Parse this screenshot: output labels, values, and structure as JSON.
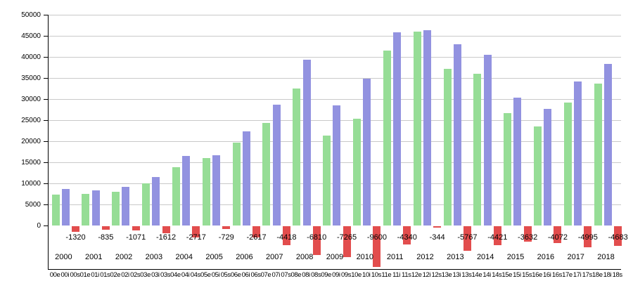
{
  "chart_data": {
    "type": "bar",
    "title": "",
    "xlabel": "",
    "ylabel": "",
    "legend": "none",
    "grid": true,
    "ylim": [
      -10300,
      50000
    ],
    "yticks": [
      0,
      5000,
      10000,
      15000,
      20000,
      25000,
      30000,
      35000,
      40000,
      45000,
      50000
    ],
    "ytick_labels": [
      "0",
      "5000",
      "10000",
      "15000",
      "20000",
      "25000",
      "30000",
      "35000",
      "40000",
      "45000",
      "50000"
    ],
    "categories": [
      "2000",
      "2001",
      "2002",
      "2003",
      "2004",
      "2005",
      "2006",
      "2007",
      "2008",
      "2009",
      "2010",
      "2011",
      "2012",
      "2013",
      "2014",
      "2015",
      "2016",
      "2017",
      "2018"
    ],
    "series": [
      {
        "name": "e",
        "color": "#96dd96",
        "values": [
          7326,
          7451,
          8021,
          9946,
          13774,
          15979,
          19734,
          24275,
          32571,
          21304,
          25284,
          41419,
          46060,
          37232,
          36081,
          26660,
          23537,
          29240,
          33726
        ]
      },
      {
        "name": "i",
        "color": "#9292e0",
        "values": [
          8646,
          8286,
          9092,
          11558,
          16491,
          16708,
          22351,
          28693,
          39381,
          28569,
          34884,
          45759,
          46404,
          42999,
          40502,
          30292,
          27609,
          34235,
          38409
        ]
      },
      {
        "name": "s",
        "color": "#e24d4d",
        "values": [
          -1320,
          -835,
          -1071,
          -1612,
          -2717,
          -729,
          -2617,
          -4418,
          -6810,
          -7265,
          -9600,
          -4340,
          -344,
          -5767,
          -4421,
          -3632,
          -4072,
          -4995,
          -4683
        ]
      }
    ],
    "balance_labels": [
      "-1320",
      "-835",
      "-1071",
      "-1612",
      "-2717",
      "-729",
      "-2617",
      "-4418",
      "-6810",
      "-7265",
      "-9600",
      "-4340",
      "-344",
      "-5767",
      "-4421",
      "-3632",
      "-4072",
      "-4995",
      "-4683"
    ],
    "bar_tick_labels": [
      "00e",
      "00i",
      "00s",
      "01e",
      "01i",
      "01s",
      "02e",
      "02i",
      "02s",
      "03e",
      "03i",
      "03s",
      "04e",
      "04i",
      "04s",
      "05e",
      "05i",
      "05s",
      "06e",
      "06i",
      "06s",
      "07e",
      "07i",
      "07s",
      "08e",
      "08i",
      "08s",
      "09e",
      "09i",
      "09s",
      "10e",
      "10i",
      "10s",
      "11e",
      "11i",
      "11s",
      "12e",
      "12i",
      "12s",
      "13e",
      "13i",
      "13s",
      "14e",
      "14i",
      "14s",
      "15e",
      "15i",
      "15s",
      "16e",
      "16i",
      "16s",
      "17e",
      "17i",
      "17s",
      "18e",
      "18i",
      "18s"
    ],
    "colors": {
      "export_bar": "#96dd96",
      "import_bar": "#9292e0",
      "balance_bar": "#e24d4d",
      "gridline": "#c9c9c9",
      "axis": "#000000"
    }
  }
}
